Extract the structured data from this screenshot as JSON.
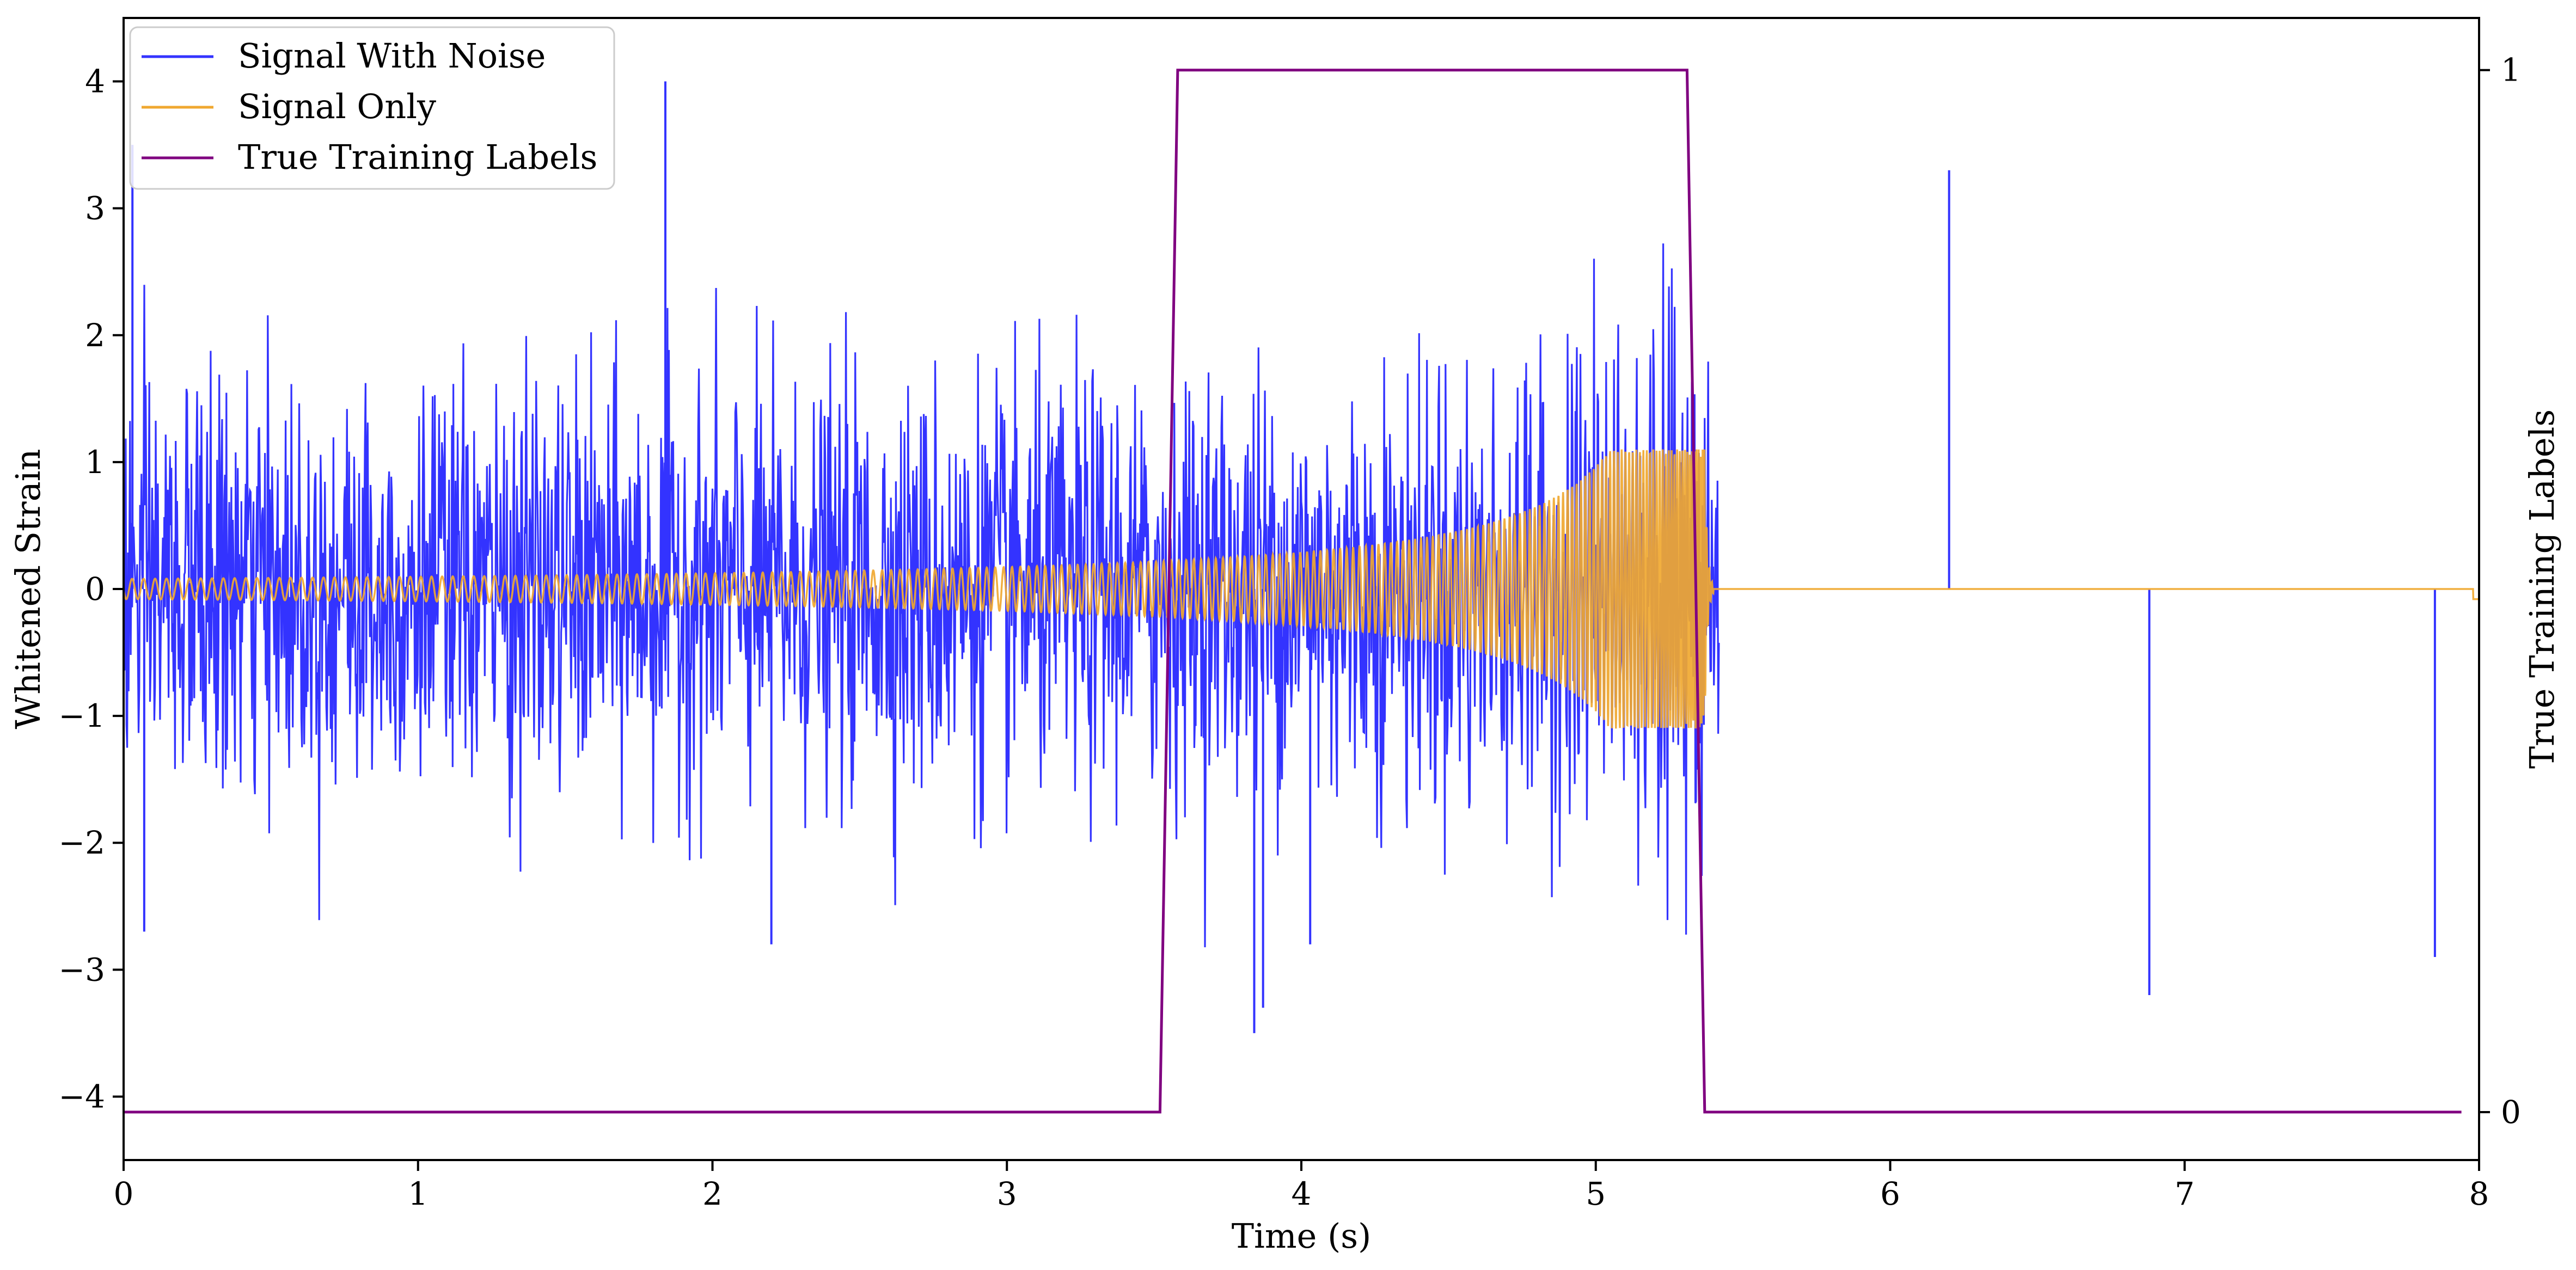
{
  "chart_data": {
    "type": "line",
    "title": "",
    "xlabel": "Time (s)",
    "ylabel": "Whitened Strain",
    "y2label": "True Training Labels",
    "xlim": [
      0,
      8
    ],
    "ylim": [
      -4.5,
      4.5
    ],
    "y2lim": [
      -0.046,
      1.05
    ],
    "xticks": [
      "0",
      "1",
      "2",
      "3",
      "4",
      "5",
      "6",
      "7",
      "8"
    ],
    "yticks": [
      "−4",
      "−3",
      "−2",
      "−1",
      "0",
      "1",
      "2",
      "3",
      "4"
    ],
    "y2ticks": [
      "0",
      "1"
    ],
    "grid": false,
    "legend_position": "top-left",
    "series": [
      {
        "name": "Signal With Noise",
        "axis": "left",
        "color": "#3333ff",
        "description": "noise",
        "sample_points": [
          [
            0.03,
            3.5
          ],
          [
            0.07,
            -2.7
          ],
          [
            1.84,
            4.0
          ],
          [
            2.2,
            -2.8
          ],
          [
            3.84,
            -3.5
          ],
          [
            3.87,
            -3.3
          ],
          [
            4.03,
            -2.8
          ],
          [
            6.88,
            -3.2
          ],
          [
            6.2,
            3.3
          ],
          [
            7.85,
            -2.9
          ]
        ]
      },
      {
        "name": "Signal Only",
        "axis": "left",
        "color": "#f0a830",
        "description": "chirp",
        "chirp": {
          "start": 0,
          "merger": 5.37,
          "end": 8,
          "amp_start": 0.08,
          "amp_merger": 1.1,
          "post_merger": 0.0
        }
      },
      {
        "name": "True Training Labels",
        "axis": "right",
        "color": "#800080",
        "x": [
          0,
          3.52,
          3.58,
          5.31,
          5.37,
          7.94
        ],
        "y": [
          0,
          0,
          1,
          1,
          0,
          0
        ]
      }
    ]
  },
  "colors": {
    "noise": "#3333ff",
    "signal": "#f0a830",
    "labels": "#800080",
    "axes": "#000000"
  }
}
